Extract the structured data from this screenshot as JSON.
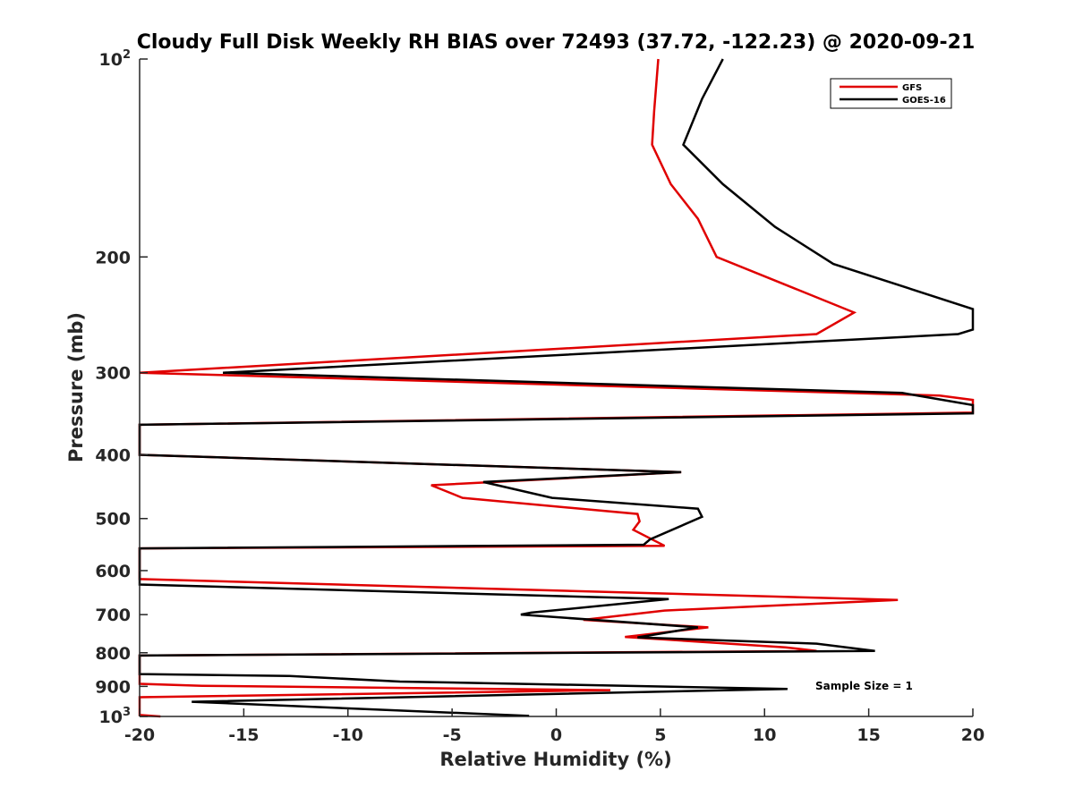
{
  "chart_data": {
    "type": "line",
    "title": "Cloudy Full Disk Weekly RH BIAS over 72493 (37.72, -122.23) @ 2020-09-21",
    "xlabel": "Relative Humidity (%)",
    "ylabel": "Pressure (mb)",
    "xlim": [
      -20,
      20
    ],
    "ylim": [
      100,
      1000
    ],
    "yscale": "log",
    "y_reversed": false,
    "xticks": [
      -20,
      -15,
      -10,
      -5,
      0,
      5,
      10,
      15,
      20
    ],
    "yticks": [
      {
        "value": 100,
        "label": "10",
        "sup": "2"
      },
      {
        "value": 200,
        "label": "200",
        "sup": ""
      },
      {
        "value": 300,
        "label": "300",
        "sup": ""
      },
      {
        "value": 400,
        "label": "400",
        "sup": ""
      },
      {
        "value": 500,
        "label": "500",
        "sup": ""
      },
      {
        "value": 600,
        "label": "600",
        "sup": ""
      },
      {
        "value": 700,
        "label": "700",
        "sup": ""
      },
      {
        "value": 800,
        "label": "800",
        "sup": ""
      },
      {
        "value": 900,
        "label": "900",
        "sup": ""
      },
      {
        "value": 1000,
        "label": "10",
        "sup": "3"
      }
    ],
    "grid": false,
    "legend": "top-right",
    "annotation": "Sample Size = 1",
    "series": [
      {
        "name": "GFS",
        "color": "#e00000",
        "points": [
          [
            4.9,
            100
          ],
          [
            4.7,
            120
          ],
          [
            4.6,
            135
          ],
          [
            5.5,
            155
          ],
          [
            6.8,
            175
          ],
          [
            7.7,
            200
          ],
          [
            11.7,
            225
          ],
          [
            14.3,
            243
          ],
          [
            12.5,
            262
          ],
          [
            -20,
            300
          ],
          [
            18.4,
            325
          ],
          [
            20,
            330
          ],
          [
            20,
            345
          ],
          [
            -20,
            360
          ],
          [
            -20,
            400
          ],
          [
            6.0,
            425
          ],
          [
            -6.0,
            445
          ],
          [
            -4.5,
            465
          ],
          [
            3.9,
            492
          ],
          [
            4.0,
            505
          ],
          [
            3.7,
            520
          ],
          [
            5.2,
            550
          ],
          [
            -20,
            555
          ],
          [
            -20,
            618
          ],
          [
            16.4,
            665
          ],
          [
            5.2,
            690
          ],
          [
            1.3,
            713
          ],
          [
            7.3,
            732
          ],
          [
            3.3,
            757
          ],
          [
            11.0,
            785
          ],
          [
            12.5,
            795
          ],
          [
            -20,
            808
          ],
          [
            -20,
            892
          ],
          [
            -17.0,
            898
          ],
          [
            2.6,
            912
          ],
          [
            -20,
            935
          ],
          [
            -20,
            995
          ],
          [
            -19.0,
            1000
          ]
        ]
      },
      {
        "name": "GOES-16",
        "color": "#000000",
        "points": [
          [
            8.0,
            100
          ],
          [
            7.0,
            115
          ],
          [
            6.1,
            135
          ],
          [
            8.0,
            155
          ],
          [
            10.5,
            180
          ],
          [
            13.3,
            205
          ],
          [
            20,
            240
          ],
          [
            20,
            258
          ],
          [
            19.3,
            262
          ],
          [
            -16.0,
            300
          ],
          [
            16.6,
            322
          ],
          [
            20,
            336
          ],
          [
            20,
            346
          ],
          [
            -20,
            360
          ],
          [
            -20,
            400
          ],
          [
            6.0,
            425
          ],
          [
            -3.5,
            440
          ],
          [
            -0.2,
            465
          ],
          [
            6.8,
            483
          ],
          [
            7.0,
            497
          ],
          [
            4.5,
            538
          ],
          [
            4.2,
            548
          ],
          [
            -20,
            555
          ],
          [
            -20,
            630
          ],
          [
            5.4,
            663
          ],
          [
            -1.2,
            695
          ],
          [
            -1.7,
            700
          ],
          [
            6.8,
            732
          ],
          [
            3.9,
            758
          ],
          [
            12.5,
            775
          ],
          [
            15.3,
            795
          ],
          [
            -20,
            808
          ],
          [
            -20,
            862
          ],
          [
            -12.8,
            868
          ],
          [
            -7.5,
            885
          ],
          [
            11.1,
            908
          ],
          [
            -17.5,
            950
          ],
          [
            -1.3,
            998
          ]
        ]
      }
    ]
  }
}
